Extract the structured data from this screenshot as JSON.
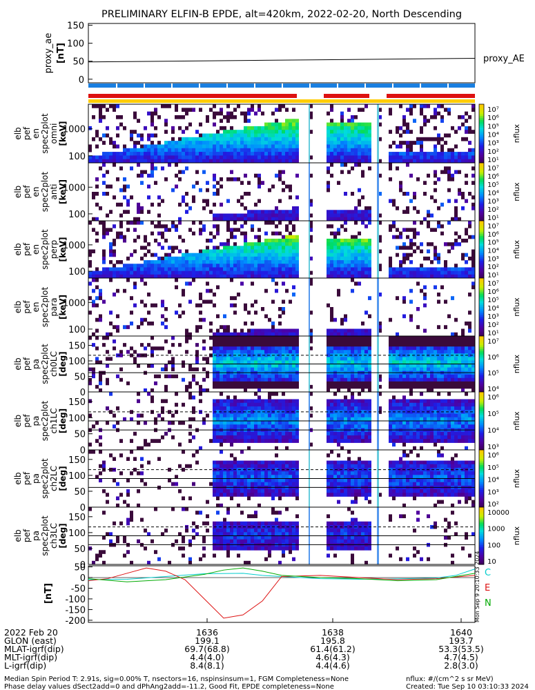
{
  "title": "PRELIMINARY ELFIN-B EPDE, alt=420km, 2022-02-20, North Descending",
  "colors": {
    "red": "#dd1111",
    "blue": "#1a7fe0",
    "yellow": "#ffcc00",
    "green": "#00aa00",
    "cyan": "#00cccc"
  },
  "chart_data": [
    {
      "type": "line",
      "panel": "proxy_ae",
      "ylabel": "proxy_ae\n[nT]",
      "ylim": [
        -10,
        155
      ],
      "yticks": [
        "150",
        "100",
        "50",
        "0"
      ],
      "legend": "proxy_AE",
      "series": [
        {
          "name": "proxy_AE",
          "x": [
            0,
            1
          ],
          "values": [
            48,
            58
          ]
        }
      ]
    },
    {
      "type": "heatmap",
      "panel": "energy-omni",
      "ylabel": [
        "elb",
        "pef",
        "en",
        "spec2plot",
        "omni",
        "[keV]"
      ],
      "yticks": [
        "1000",
        "100"
      ],
      "cbar": {
        "label": "nflux",
        "ticks": [
          "10⁷",
          "10⁶",
          "10⁵",
          "10⁴",
          "10³",
          "10²",
          "10¹"
        ]
      }
    },
    {
      "type": "heatmap",
      "panel": "energy-anti",
      "ylabel": [
        "elb",
        "pef",
        "en",
        "spec2plot",
        "anti",
        "[keV]"
      ],
      "yticks": [
        "1000",
        "100"
      ],
      "cbar": {
        "label": "nflux",
        "ticks": [
          "10⁷",
          "10⁶",
          "10⁵",
          "10⁴",
          "10³",
          "10²",
          "10¹"
        ]
      }
    },
    {
      "type": "heatmap",
      "panel": "energy-perp",
      "ylabel": [
        "elb",
        "pef",
        "en",
        "spec2plot",
        "perp",
        "[keV]"
      ],
      "yticks": [
        "1000",
        "100"
      ],
      "cbar": {
        "label": "nflux",
        "ticks": [
          "10⁷",
          "10⁶",
          "10⁵",
          "10⁴",
          "10³",
          "10²",
          "10¹"
        ]
      }
    },
    {
      "type": "heatmap",
      "panel": "energy-para",
      "ylabel": [
        "elb",
        "pef",
        "en",
        "spec2plot",
        "para",
        "[keV]"
      ],
      "yticks": [
        "1000",
        "100"
      ],
      "cbar": {
        "label": "nflux",
        "ticks": [
          "10⁷",
          "10⁶",
          "10⁵",
          "10⁴",
          "10³",
          "10²",
          "10¹"
        ]
      }
    },
    {
      "type": "heatmap",
      "panel": "pa-ch0",
      "ylabel": [
        "elb",
        "pef",
        "pa",
        "spec2plot",
        "ch0LC",
        "[deg]"
      ],
      "yticks": [
        "150",
        "100",
        "50",
        "0"
      ],
      "cbar": {
        "label": "nflux",
        "ticks": [
          "10⁷",
          "10⁶",
          "10⁵",
          "10⁴"
        ]
      }
    },
    {
      "type": "heatmap",
      "panel": "pa-ch1",
      "ylabel": [
        "elb",
        "pef",
        "pa",
        "spec2plot",
        "ch1LC",
        "[deg]"
      ],
      "yticks": [
        "150",
        "100",
        "50",
        "0"
      ],
      "cbar": {
        "label": "nflux",
        "ticks": [
          "10⁶",
          "10⁵",
          "10⁴",
          "10³"
        ]
      }
    },
    {
      "type": "heatmap",
      "panel": "pa-ch2",
      "ylabel": [
        "elb",
        "pef",
        "pa",
        "spec2plot",
        "ch2LC",
        "[deg]"
      ],
      "yticks": [
        "150",
        "100",
        "50",
        "0"
      ],
      "cbar": {
        "label": "nflux",
        "ticks": [
          "10⁶",
          "10⁵",
          "10⁴",
          "10³",
          "10²"
        ]
      }
    },
    {
      "type": "heatmap",
      "panel": "pa-ch3",
      "ylabel": [
        "elb",
        "pef",
        "pa",
        "spec2plot",
        "ch3LC",
        "[deg]"
      ],
      "yticks": [
        "150",
        "100",
        "50",
        "0"
      ],
      "cbar": {
        "label": "nflux",
        "ticks": [
          "10000",
          "1000",
          "100",
          "10"
        ]
      }
    },
    {
      "type": "line",
      "panel": "magnetic-field",
      "ylabel": "[nT]",
      "ylim": [
        -210,
        55
      ],
      "yticks": [
        "50",
        "0",
        "-50",
        "-100",
        "-150",
        "-200"
      ],
      "legend": [
        "C",
        "E",
        "N"
      ],
      "series": [
        {
          "name": "C",
          "color": "#00cccc",
          "x": [
            0,
            0.1,
            0.2,
            0.3,
            0.4,
            0.45,
            0.5,
            0.6,
            0.7,
            0.8,
            0.9,
            0.95,
            1.0
          ],
          "values": [
            -10,
            -8,
            5,
            18,
            20,
            10,
            5,
            -5,
            -8,
            -6,
            -2,
            10,
            40
          ]
        },
        {
          "name": "E",
          "color": "#dd1111",
          "x": [
            0,
            0.05,
            0.1,
            0.15,
            0.2,
            0.25,
            0.3,
            0.35,
            0.4,
            0.45,
            0.5,
            0.6,
            0.7,
            0.8,
            0.9,
            1.0
          ],
          "values": [
            -15,
            -5,
            20,
            45,
            30,
            -10,
            -100,
            -190,
            -175,
            -110,
            5,
            10,
            0,
            -10,
            -5,
            10
          ]
        },
        {
          "name": "N",
          "color": "#00aa00",
          "x": [
            0,
            0.1,
            0.2,
            0.3,
            0.35,
            0.4,
            0.45,
            0.5,
            0.6,
            0.7,
            0.8,
            0.9,
            1.0
          ],
          "values": [
            -5,
            -20,
            -10,
            15,
            35,
            45,
            30,
            10,
            0,
            -5,
            -15,
            -10,
            20
          ]
        }
      ]
    }
  ],
  "xaxis": {
    "ticks": [
      "1636",
      "1638",
      "1640"
    ],
    "rows": [
      {
        "label": "2022 Feb 20",
        "values": [
          "1636",
          "1638",
          "1640"
        ]
      },
      {
        "label": "GLON (east)",
        "values": [
          "199.1",
          "195.8",
          "193.7"
        ]
      },
      {
        "label": "MLAT-igrf(dip)",
        "values": [
          "69.7(68.8)",
          "61.4(61.2)",
          "53.3(53.5)"
        ]
      },
      {
        "label": "MLT-igrf(dip)",
        "values": [
          "4.4(4.0)",
          "4.6(4.3)",
          "4.7(4.5)"
        ]
      },
      {
        "label": "L-igrf(dip)",
        "values": [
          "8.4(8.1)",
          "4.4(4.6)",
          "2.8(3.0)"
        ]
      }
    ]
  },
  "footer": {
    "line1": "Median Spin Period T: 2.91s, sig=0.00% T, nsectors=16, nspinsinsum=1, FGM Completeness=None",
    "line2": "Phase delay values dSect2add=0 and dPhAng2add=-11.2, Good Fit, EPDE completeness=None",
    "units": "nflux: #/(cm^2 s sr MeV)",
    "created": "Created: Tue Sep 10 03:10:33 2024"
  },
  "side_stamp": "Mon Sep  9 20:10:33 2024"
}
